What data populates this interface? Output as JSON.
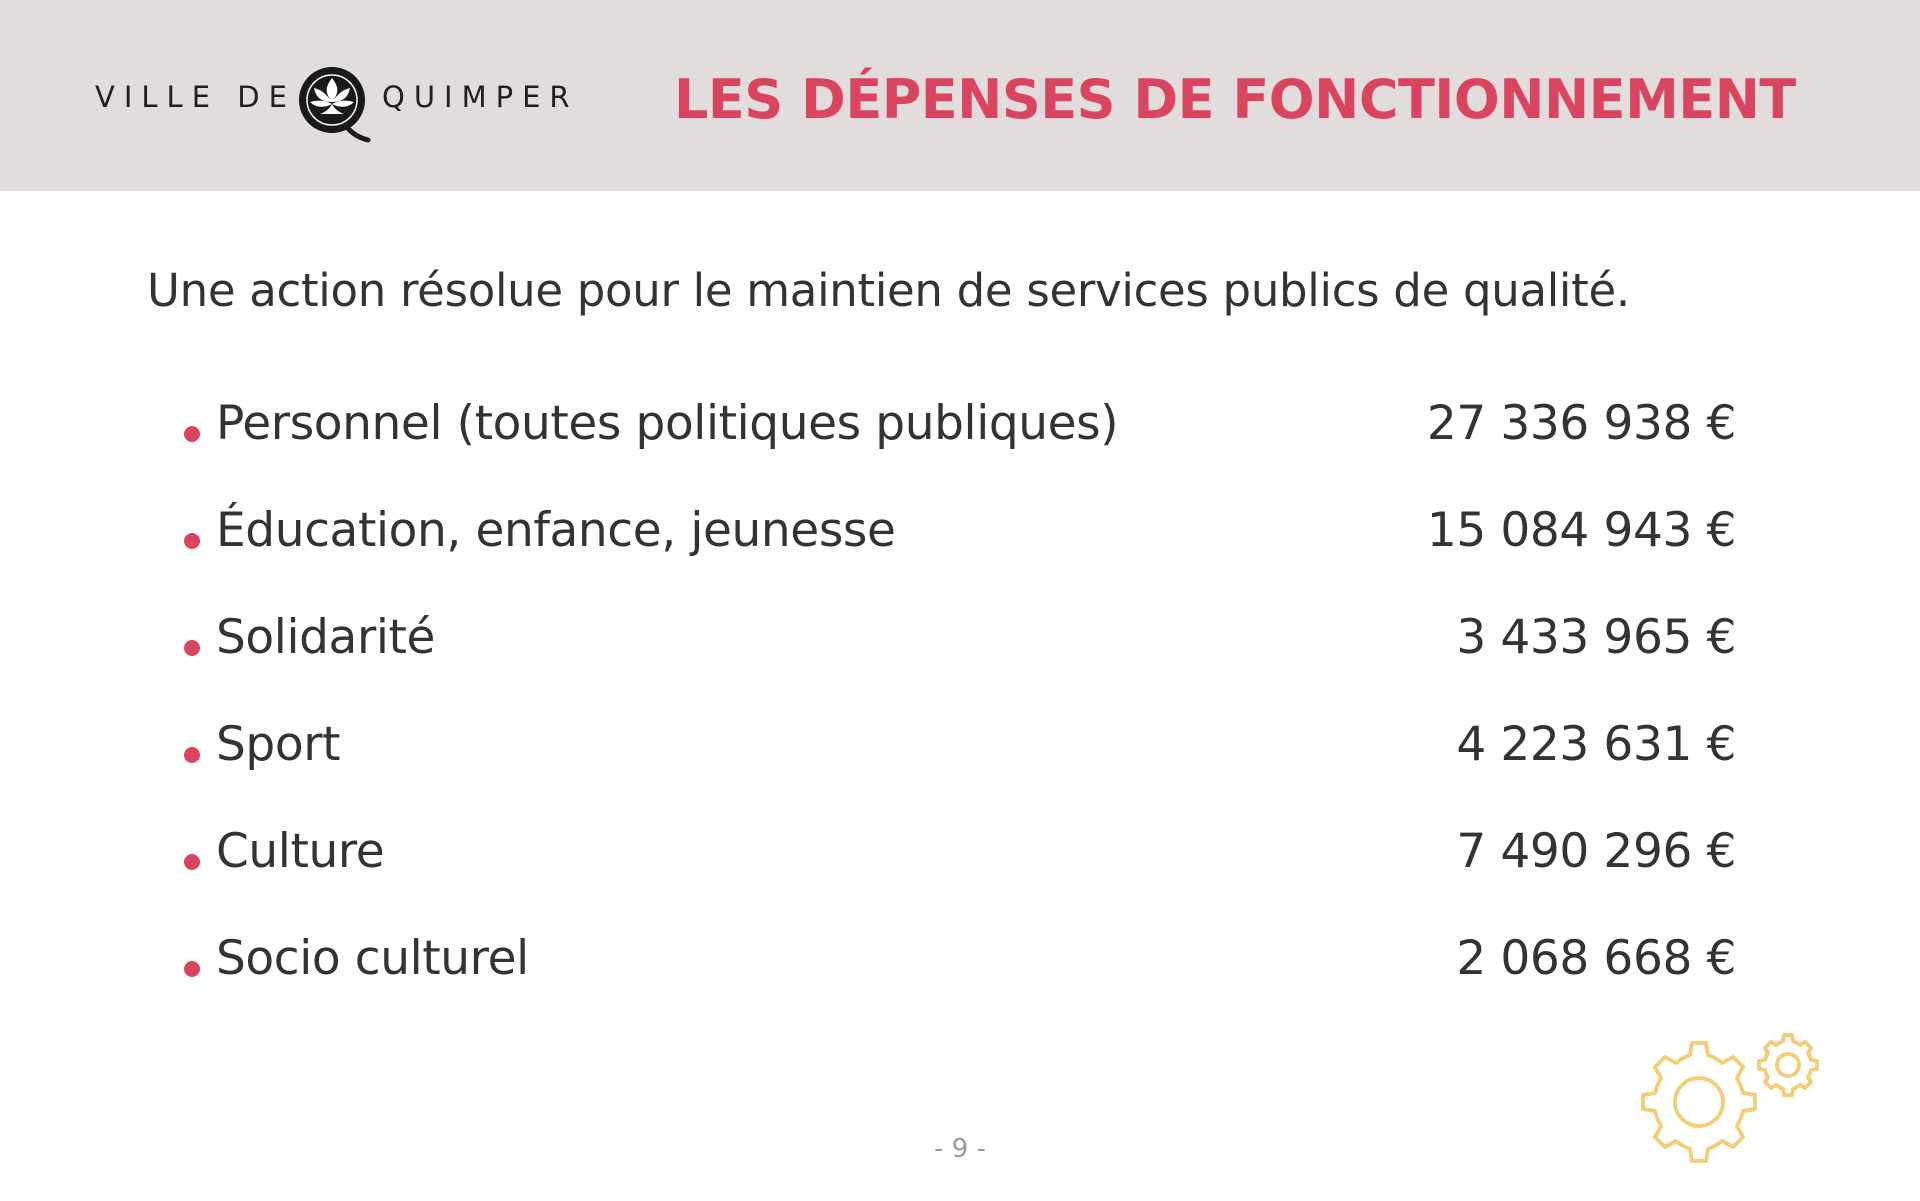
{
  "header": {
    "logo": {
      "text_left": "VILLE DE",
      "text_right": "QUIMPER",
      "emblem_icon": "quimper-emblem-icon"
    },
    "title": "LES DÉPENSES DE FONCTIONNEMENT"
  },
  "main": {
    "subtitle": "Une action résolue pour le maintien de services publics de qualité.",
    "expenses": [
      {
        "label": "Personnel (toutes politiques publiques)",
        "amount": "27 336 938 €"
      },
      {
        "label": "Éducation, enfance, jeunesse",
        "amount": "15 084 943 €"
      },
      {
        "label": "Solidarité",
        "amount": "3 433 965 €"
      },
      {
        "label": "Sport",
        "amount": "4 223 631 €"
      },
      {
        "label": "Culture",
        "amount": "7 490 296 €"
      },
      {
        "label": "Socio culturel",
        "amount": "2 068 668 €"
      }
    ]
  },
  "footer": {
    "page_number": "- 9 -",
    "decoration_icon": "gears-icon"
  },
  "colors": {
    "header_background": "#e2dcdc",
    "accent": "#d9455f",
    "body_text": "#333333",
    "gear_outline": "#f0cf7a"
  }
}
